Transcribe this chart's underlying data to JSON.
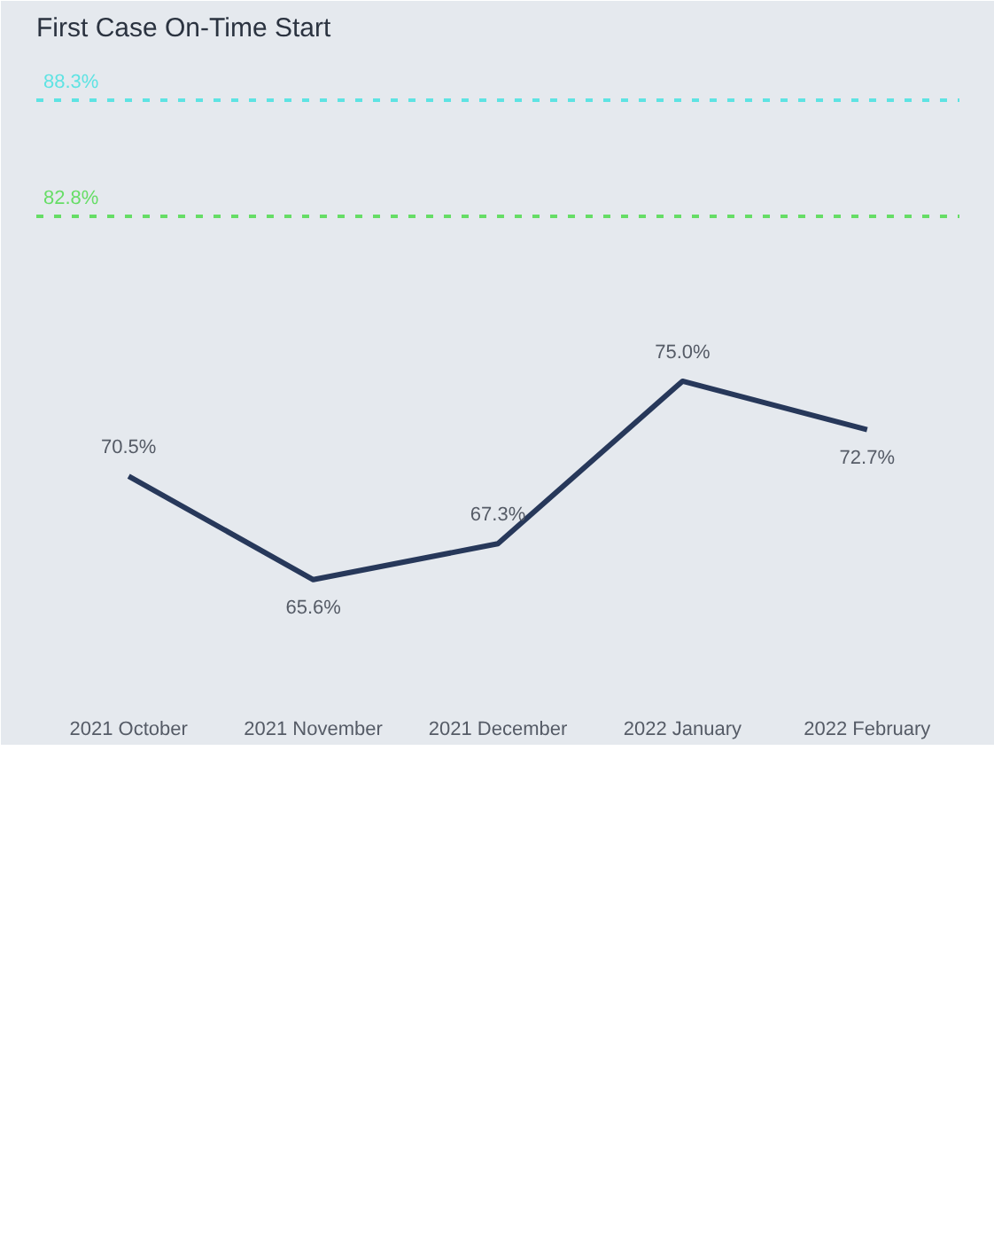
{
  "chart_data": {
    "type": "line",
    "title": "First Case On-Time Start",
    "categories": [
      "2021 October",
      "2021 November",
      "2021 December",
      "2022 January",
      "2022 February"
    ],
    "series": [
      {
        "color": "#27385a",
        "values": [
          70.5,
          65.6,
          67.3,
          75.0,
          72.7
        ],
        "value_labels": [
          "70.5%",
          "65.6%",
          "67.3%",
          "75.0%",
          "72.7%"
        ]
      }
    ],
    "ref_lines": [
      {
        "axis": "y",
        "value": 88.3,
        "label": "88.3%",
        "color": "#5ee3e3",
        "line_style": "dashed"
      },
      {
        "axis": "y",
        "value": 82.8,
        "label": "82.8%",
        "color": "#66dd66",
        "line_style": "dashed"
      }
    ],
    "grid": false,
    "marker": "none",
    "line_style": "solid",
    "tick_labels": "x"
  }
}
